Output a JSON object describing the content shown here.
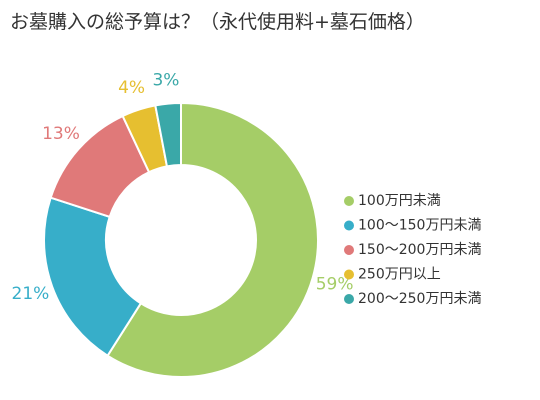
{
  "chart_data": {
    "type": "pie",
    "style": "donut",
    "title": "お墓購入の総予算は？（永代使用料+墓石価格）",
    "legend_position": "right",
    "slices": [
      {
        "label": "100万円未満",
        "value": 59,
        "value_label": "59%",
        "color": "#a5cd67"
      },
      {
        "label": "100〜150万円未満",
        "value": 21,
        "value_label": "21%",
        "color": "#37aec9"
      },
      {
        "label": "150〜200万円未満",
        "value": 13,
        "value_label": "13%",
        "color": "#e07979"
      },
      {
        "label": "250万円以上",
        "value": 4,
        "value_label": "4%",
        "color": "#e6bf30"
      },
      {
        "label": "200〜250万円未満",
        "value": 3,
        "value_label": "3%",
        "color": "#3aa8a8"
      }
    ]
  }
}
